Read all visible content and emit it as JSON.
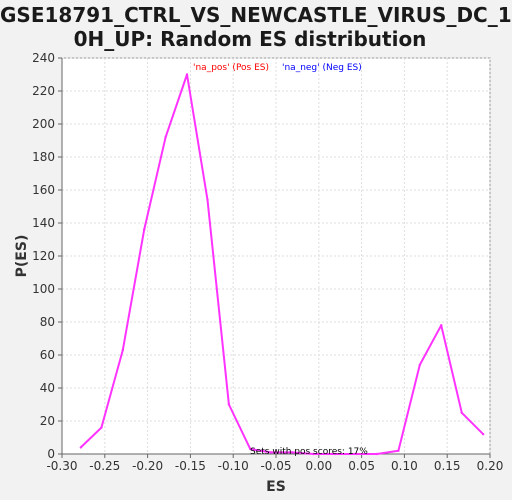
{
  "chart_data": {
    "type": "line",
    "title_lines": [
      "GSE18791_CTRL_VS_NEWCASTLE_VIRUS_DC_1",
      "0H_UP: Random ES distribution"
    ],
    "xlabel": "ES",
    "ylabel": "P(ES)",
    "xlim": [
      -0.3,
      0.2
    ],
    "ylim": [
      0,
      240
    ],
    "x_ticks": [
      "-0.30",
      "-0.25",
      "-0.20",
      "-0.15",
      "-0.10",
      "-0.05",
      "0.00",
      "0.05",
      "0.10",
      "0.15",
      "0.20"
    ],
    "y_ticks": [
      "0",
      "20",
      "40",
      "60",
      "80",
      "100",
      "120",
      "140",
      "160",
      "180",
      "200",
      "220",
      "240"
    ],
    "grid": true,
    "legend": [
      {
        "label": "'na_pos' (Pos ES)",
        "color": "#ff0000"
      },
      {
        "label": "'na_neg' (Neg ES)",
        "color": "#0000ff"
      }
    ],
    "annotation": "Sets with pos scores: 17%",
    "series": [
      {
        "color": "#ff33ff",
        "x": [
          -0.278,
          -0.254,
          -0.229,
          -0.204,
          -0.179,
          -0.154,
          -0.13,
          -0.105,
          -0.08,
          -0.056,
          -0.031,
          -0.006,
          0.019,
          0.044,
          0.068,
          0.093,
          0.118,
          0.143,
          0.167,
          0.192
        ],
        "y": [
          4,
          16,
          63,
          136,
          192,
          230,
          154,
          30,
          3,
          1,
          1,
          0,
          0,
          0,
          0,
          2,
          54,
          78,
          25,
          12
        ]
      }
    ]
  }
}
